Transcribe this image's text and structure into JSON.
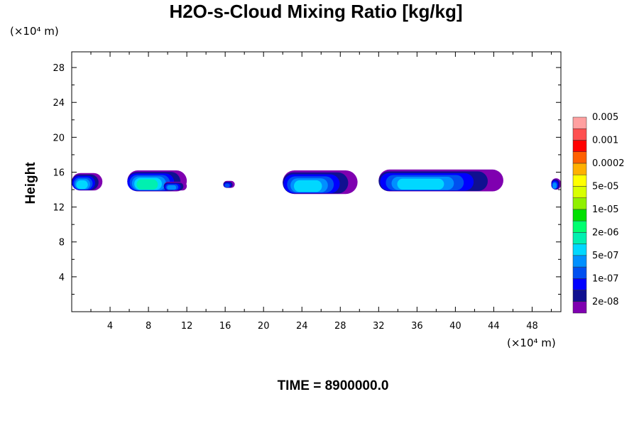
{
  "chart_data": {
    "type": "heatmap",
    "title": "H2O-s-Cloud Mixing Ratio [kg/kg]",
    "ylabel": "Height",
    "xunit": "(×10⁴ m)",
    "yunit": "(×10⁴ m)",
    "xlim": [
      0,
      51
    ],
    "ylim": [
      0,
      29.8
    ],
    "xticks": [
      4,
      8,
      12,
      16,
      20,
      24,
      28,
      32,
      36,
      40,
      44,
      48
    ],
    "yticks": [
      4,
      8,
      12,
      16,
      20,
      24,
      28
    ],
    "colorbar": {
      "colors": [
        "#7f00b0",
        "#101090",
        "#0000ff",
        "#0050f0",
        "#0090ff",
        "#00d8ff",
        "#00f0b0",
        "#00ff70",
        "#00e000",
        "#90f000",
        "#d8ff00",
        "#ffff00",
        "#ffb000",
        "#ff6000",
        "#ff0000",
        "#ff5050",
        "#ffa0a0"
      ],
      "labels": [
        "2e-08",
        "1e-07",
        "5e-07",
        "2e-06",
        "1e-05",
        "5e-05",
        "0.0002",
        "0.001",
        "0.005"
      ]
    },
    "cloud_regions": [
      {
        "x": [
          0.0,
          3.2
        ],
        "y": [
          13.9,
          15.9
        ],
        "max_level": 5
      },
      {
        "x": [
          5.8,
          12.0
        ],
        "y": [
          13.8,
          16.2
        ],
        "max_level": 6
      },
      {
        "x": [
          9.6,
          12.0
        ],
        "y": [
          13.9,
          14.9
        ],
        "max_level": 4
      },
      {
        "x": [
          15.8,
          17.0
        ],
        "y": [
          14.2,
          15.0
        ],
        "max_level": 3
      },
      {
        "x": [
          22.0,
          29.8
        ],
        "y": [
          13.5,
          16.2
        ],
        "max_level": 5
      },
      {
        "x": [
          32.0,
          45.0
        ],
        "y": [
          13.8,
          16.3
        ],
        "max_level": 5
      },
      {
        "x": [
          50.0,
          51.0
        ],
        "y": [
          14.0,
          15.3
        ],
        "max_level": 4
      }
    ],
    "time_label": "TIME = 8900000.0"
  }
}
